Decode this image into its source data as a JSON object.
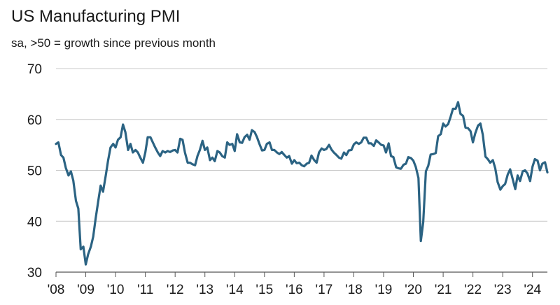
{
  "chart_data": {
    "type": "line",
    "title": "US Manufacturing PMI",
    "subtitle": "sa, >50 = growth since previous month",
    "ylim": [
      30,
      70
    ],
    "y_ticks": [
      30,
      40,
      50,
      60,
      70
    ],
    "xlim": [
      2008.0,
      2024.5
    ],
    "x_tick_labels": [
      "'08",
      "'09",
      "'10",
      "'11",
      "'12",
      "'13",
      "'14",
      "'15",
      "'16",
      "'17",
      "'18",
      "'19",
      "'20",
      "'21",
      "'22",
      "'23",
      "'24"
    ],
    "x_tick_years": [
      2008,
      2009,
      2010,
      2011,
      2012,
      2013,
      2014,
      2015,
      2016,
      2017,
      2018,
      2019,
      2020,
      2021,
      2022,
      2023,
      2024
    ],
    "grid": "horizontal",
    "line_color": "#2b6383",
    "series": [
      {
        "name": "",
        "x": [
          2008.0,
          2008.08,
          2008.17,
          2008.25,
          2008.33,
          2008.42,
          2008.5,
          2008.58,
          2008.67,
          2008.75,
          2008.83,
          2008.92,
          2009.0,
          2009.08,
          2009.17,
          2009.25,
          2009.33,
          2009.42,
          2009.5,
          2009.58,
          2009.67,
          2009.75,
          2009.83,
          2009.92,
          2010.0,
          2010.08,
          2010.17,
          2010.25,
          2010.33,
          2010.42,
          2010.5,
          2010.58,
          2010.67,
          2010.75,
          2010.83,
          2010.92,
          2011.0,
          2011.08,
          2011.17,
          2011.25,
          2011.33,
          2011.42,
          2011.5,
          2011.58,
          2011.67,
          2011.75,
          2011.83,
          2011.92,
          2012.0,
          2012.08,
          2012.17,
          2012.25,
          2012.33,
          2012.42,
          2012.5,
          2012.58,
          2012.67,
          2012.75,
          2012.83,
          2012.92,
          2013.0,
          2013.08,
          2013.17,
          2013.25,
          2013.33,
          2013.42,
          2013.5,
          2013.58,
          2013.67,
          2013.75,
          2013.83,
          2013.92,
          2014.0,
          2014.08,
          2014.17,
          2014.25,
          2014.33,
          2014.42,
          2014.5,
          2014.58,
          2014.67,
          2014.75,
          2014.83,
          2014.92,
          2015.0,
          2015.08,
          2015.17,
          2015.25,
          2015.33,
          2015.42,
          2015.5,
          2015.58,
          2015.67,
          2015.75,
          2015.83,
          2015.92,
          2016.0,
          2016.08,
          2016.17,
          2016.25,
          2016.33,
          2016.42,
          2016.5,
          2016.58,
          2016.67,
          2016.75,
          2016.83,
          2016.92,
          2017.0,
          2017.08,
          2017.17,
          2017.25,
          2017.33,
          2017.42,
          2017.5,
          2017.58,
          2017.67,
          2017.75,
          2017.83,
          2017.92,
          2018.0,
          2018.08,
          2018.17,
          2018.25,
          2018.33,
          2018.42,
          2018.5,
          2018.58,
          2018.67,
          2018.75,
          2018.83,
          2018.92,
          2019.0,
          2019.08,
          2019.17,
          2019.25,
          2019.33,
          2019.42,
          2019.5,
          2019.58,
          2019.67,
          2019.75,
          2019.83,
          2019.92,
          2020.0,
          2020.08,
          2020.17,
          2020.25,
          2020.33,
          2020.42,
          2020.5,
          2020.58,
          2020.67,
          2020.75,
          2020.83,
          2020.92,
          2021.0,
          2021.08,
          2021.17,
          2021.25,
          2021.33,
          2021.42,
          2021.5,
          2021.58,
          2021.67,
          2021.75,
          2021.83,
          2021.92,
          2022.0,
          2022.08,
          2022.17,
          2022.25,
          2022.33,
          2022.42,
          2022.5,
          2022.58,
          2022.67,
          2022.75,
          2022.83,
          2022.92,
          2023.0,
          2023.08,
          2023.17,
          2023.25,
          2023.33,
          2023.42,
          2023.5,
          2023.58,
          2023.67,
          2023.75,
          2023.83,
          2023.92,
          2024.0,
          2024.08,
          2024.17,
          2024.25,
          2024.33,
          2024.42,
          2024.5
        ],
        "values": [
          55.2,
          55.5,
          53.0,
          52.5,
          50.5,
          49.0,
          49.8,
          48.0,
          44.0,
          42.5,
          34.5,
          35.0,
          31.5,
          33.5,
          35.0,
          37.0,
          40.5,
          44.0,
          47.0,
          45.8,
          49.0,
          52.0,
          54.5,
          55.2,
          54.5,
          56.0,
          56.5,
          59.0,
          57.5,
          54.0,
          55.2,
          53.5,
          54.0,
          53.5,
          52.5,
          51.5,
          53.5,
          56.5,
          56.5,
          55.5,
          54.5,
          53.5,
          52.8,
          53.8,
          53.5,
          53.8,
          53.6,
          53.9,
          54.0,
          53.5,
          56.2,
          56.0,
          53.5,
          51.5,
          51.5,
          51.2,
          51.0,
          52.8,
          54.0,
          55.8,
          54.0,
          54.5,
          52.0,
          52.5,
          51.8,
          53.8,
          53.5,
          52.8,
          52.5,
          55.5,
          55.0,
          55.2,
          53.8,
          57.1,
          55.5,
          55.4,
          56.5,
          57.0,
          56.0,
          57.9,
          57.5,
          56.5,
          55.2,
          53.9,
          54.0,
          55.2,
          55.5,
          54.0,
          54.0,
          53.5,
          53.2,
          53.6,
          53.0,
          52.5,
          52.8,
          51.3,
          52.0,
          51.4,
          51.5,
          51.0,
          50.8,
          51.3,
          51.5,
          52.9,
          52.0,
          51.5,
          53.5,
          54.3,
          54.0,
          54.2,
          55.0,
          54.1,
          53.5,
          53.0,
          52.5,
          52.3,
          53.5,
          53.0,
          53.9,
          54.0,
          55.1,
          55.5,
          55.2,
          55.5,
          56.4,
          56.4,
          55.3,
          55.3,
          54.8,
          55.9,
          55.5,
          55.0,
          54.9,
          53.5,
          55.3,
          52.8,
          52.6,
          50.6,
          50.4,
          50.3,
          51.1,
          51.3,
          52.6,
          52.4,
          51.9,
          50.7,
          48.5,
          36.1,
          39.8,
          49.8,
          50.9,
          53.1,
          53.2,
          53.4,
          56.7,
          57.1,
          59.2,
          58.6,
          59.1,
          60.5,
          62.1,
          62.1,
          63.4,
          61.1,
          60.7,
          58.4,
          58.3,
          57.7,
          55.5,
          57.3,
          58.8,
          59.2,
          57.0,
          52.7,
          52.2,
          51.5,
          52.0,
          50.4,
          47.7,
          46.2,
          46.9,
          47.3,
          49.2,
          50.2,
          48.4,
          46.3,
          49.0,
          47.9,
          49.8,
          50.0,
          49.4,
          47.9,
          50.7,
          52.2,
          51.9,
          50.0,
          51.3,
          51.6,
          49.6
        ]
      }
    ]
  }
}
